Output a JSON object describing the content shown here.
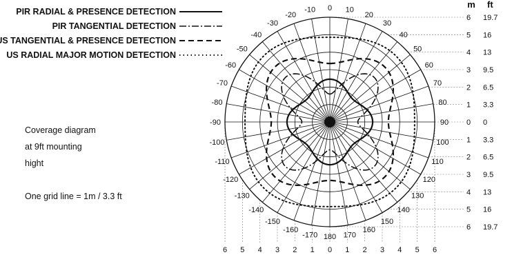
{
  "legend": [
    {
      "label": "PIR RADIAL & PRESENCE DETECTION",
      "style": "solid"
    },
    {
      "label": "PIR TANGENTIAL DETECTION",
      "style": "dash-dot"
    },
    {
      "label": "US TANGENTIAL & PRESENCE DETECTION",
      "style": "dashed"
    },
    {
      "label": "US RADIAL MAJOR MOTION DETECTION",
      "style": "dotted"
    }
  ],
  "notes": {
    "line1": "Coverage diagram",
    "line2": "at 9ft mounting",
    "line3": "hight",
    "grid": "One grid line = 1m / 3.3 ft"
  },
  "scale": {
    "m_header": "m",
    "ft_header": "ft",
    "rows": [
      {
        "m": "6",
        "ft": "19.7"
      },
      {
        "m": "5",
        "ft": "16"
      },
      {
        "m": "4",
        "ft": "13"
      },
      {
        "m": "3",
        "ft": "9.5"
      },
      {
        "m": "2",
        "ft": "6.5"
      },
      {
        "m": "1",
        "ft": "3.3"
      },
      {
        "m": "0",
        "ft": "0"
      },
      {
        "m": "1",
        "ft": "3.3"
      },
      {
        "m": "2",
        "ft": "6.5"
      },
      {
        "m": "3",
        "ft": "9.5"
      },
      {
        "m": "4",
        "ft": "13"
      },
      {
        "m": "5",
        "ft": "16"
      },
      {
        "m": "6",
        "ft": "19.7"
      }
    ]
  },
  "bottom_scale": [
    "6",
    "5",
    "4",
    "3",
    "2",
    "1",
    "0",
    "1",
    "2",
    "3",
    "4",
    "5",
    "6"
  ],
  "angles": [
    {
      "deg": 0,
      "label": "0"
    },
    {
      "deg": 10,
      "label": "10"
    },
    {
      "deg": 20,
      "label": "20"
    },
    {
      "deg": 30,
      "label": "30"
    },
    {
      "deg": 40,
      "label": "40"
    },
    {
      "deg": 50,
      "label": "50"
    },
    {
      "deg": 60,
      "label": "60"
    },
    {
      "deg": 70,
      "label": "70"
    },
    {
      "deg": 80,
      "label": "80"
    },
    {
      "deg": 90,
      "label": "90"
    },
    {
      "deg": 100,
      "label": "100"
    },
    {
      "deg": 110,
      "label": "110"
    },
    {
      "deg": 120,
      "label": "120"
    },
    {
      "deg": 130,
      "label": "130"
    },
    {
      "deg": 140,
      "label": "140"
    },
    {
      "deg": 150,
      "label": "150"
    },
    {
      "deg": 160,
      "label": "160"
    },
    {
      "deg": 170,
      "label": "170"
    },
    {
      "deg": 180,
      "label": "180"
    },
    {
      "deg": -170,
      "label": "-170"
    },
    {
      "deg": -160,
      "label": "-160"
    },
    {
      "deg": -150,
      "label": "-150"
    },
    {
      "deg": -140,
      "label": "-140"
    },
    {
      "deg": -130,
      "label": "-130"
    },
    {
      "deg": -120,
      "label": "-120"
    },
    {
      "deg": -110,
      "label": "-110"
    },
    {
      "deg": -100,
      "label": "-100"
    },
    {
      "deg": -90,
      "label": "-90"
    },
    {
      "deg": -80,
      "label": "-80"
    },
    {
      "deg": -70,
      "label": "-70"
    },
    {
      "deg": -60,
      "label": "-60"
    },
    {
      "deg": -50,
      "label": "-50"
    },
    {
      "deg": -40,
      "label": "-40"
    },
    {
      "deg": -30,
      "label": "-30"
    },
    {
      "deg": -20,
      "label": "-20"
    },
    {
      "deg": -10,
      "label": "-10"
    }
  ],
  "grid": {
    "rings_m": 6
  }
}
